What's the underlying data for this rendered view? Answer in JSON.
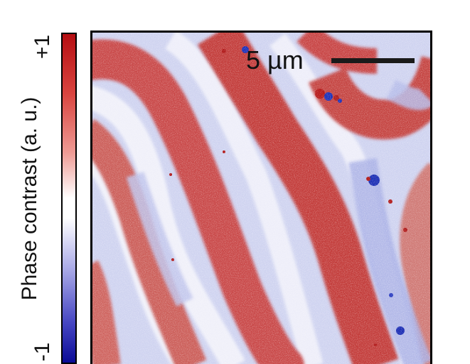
{
  "colorbar": {
    "label": "Phase contrast (a. u.)",
    "max_label": "+1",
    "min_label": "-1",
    "colors": {
      "positive": "#c0161a",
      "neutral": "#ffffff",
      "negative": "#0b0b96"
    }
  },
  "scale_bar": {
    "label": "5 µm"
  },
  "image": {
    "description_colors": {
      "red_domain": "#c84646",
      "blue_domain": "#c9cdee",
      "background": "#eef0fb"
    }
  }
}
